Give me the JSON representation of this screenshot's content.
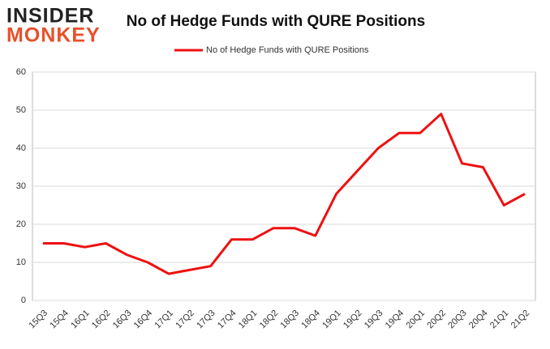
{
  "logo": {
    "line1": "INSIDER",
    "line2": "MONKEY"
  },
  "chart_data": {
    "type": "line",
    "title": "No of Hedge Funds with QURE Positions",
    "categories": [
      "15Q3",
      "15Q4",
      "16Q1",
      "16Q2",
      "16Q3",
      "16Q4",
      "17Q1",
      "17Q2",
      "17Q3",
      "17Q4",
      "18Q1",
      "18Q2",
      "18Q3",
      "18Q4",
      "19Q1",
      "19Q2",
      "19Q3",
      "19Q4",
      "20Q1",
      "20Q2",
      "20Q3",
      "20Q4",
      "21Q1",
      "21Q2"
    ],
    "series": [
      {
        "name": "No of Hedge Funds with QURE Positions",
        "color": "#ee1111",
        "values": [
          15,
          15,
          14,
          15,
          12,
          10,
          7,
          8,
          9,
          16,
          16,
          19,
          19,
          17,
          28,
          34,
          40,
          44,
          44,
          49,
          36,
          35,
          25,
          28
        ]
      }
    ],
    "ylim": [
      0,
      60
    ],
    "yticks": [
      0,
      10,
      20,
      30,
      40,
      50,
      60
    ],
    "grid": true,
    "legend": "top"
  }
}
